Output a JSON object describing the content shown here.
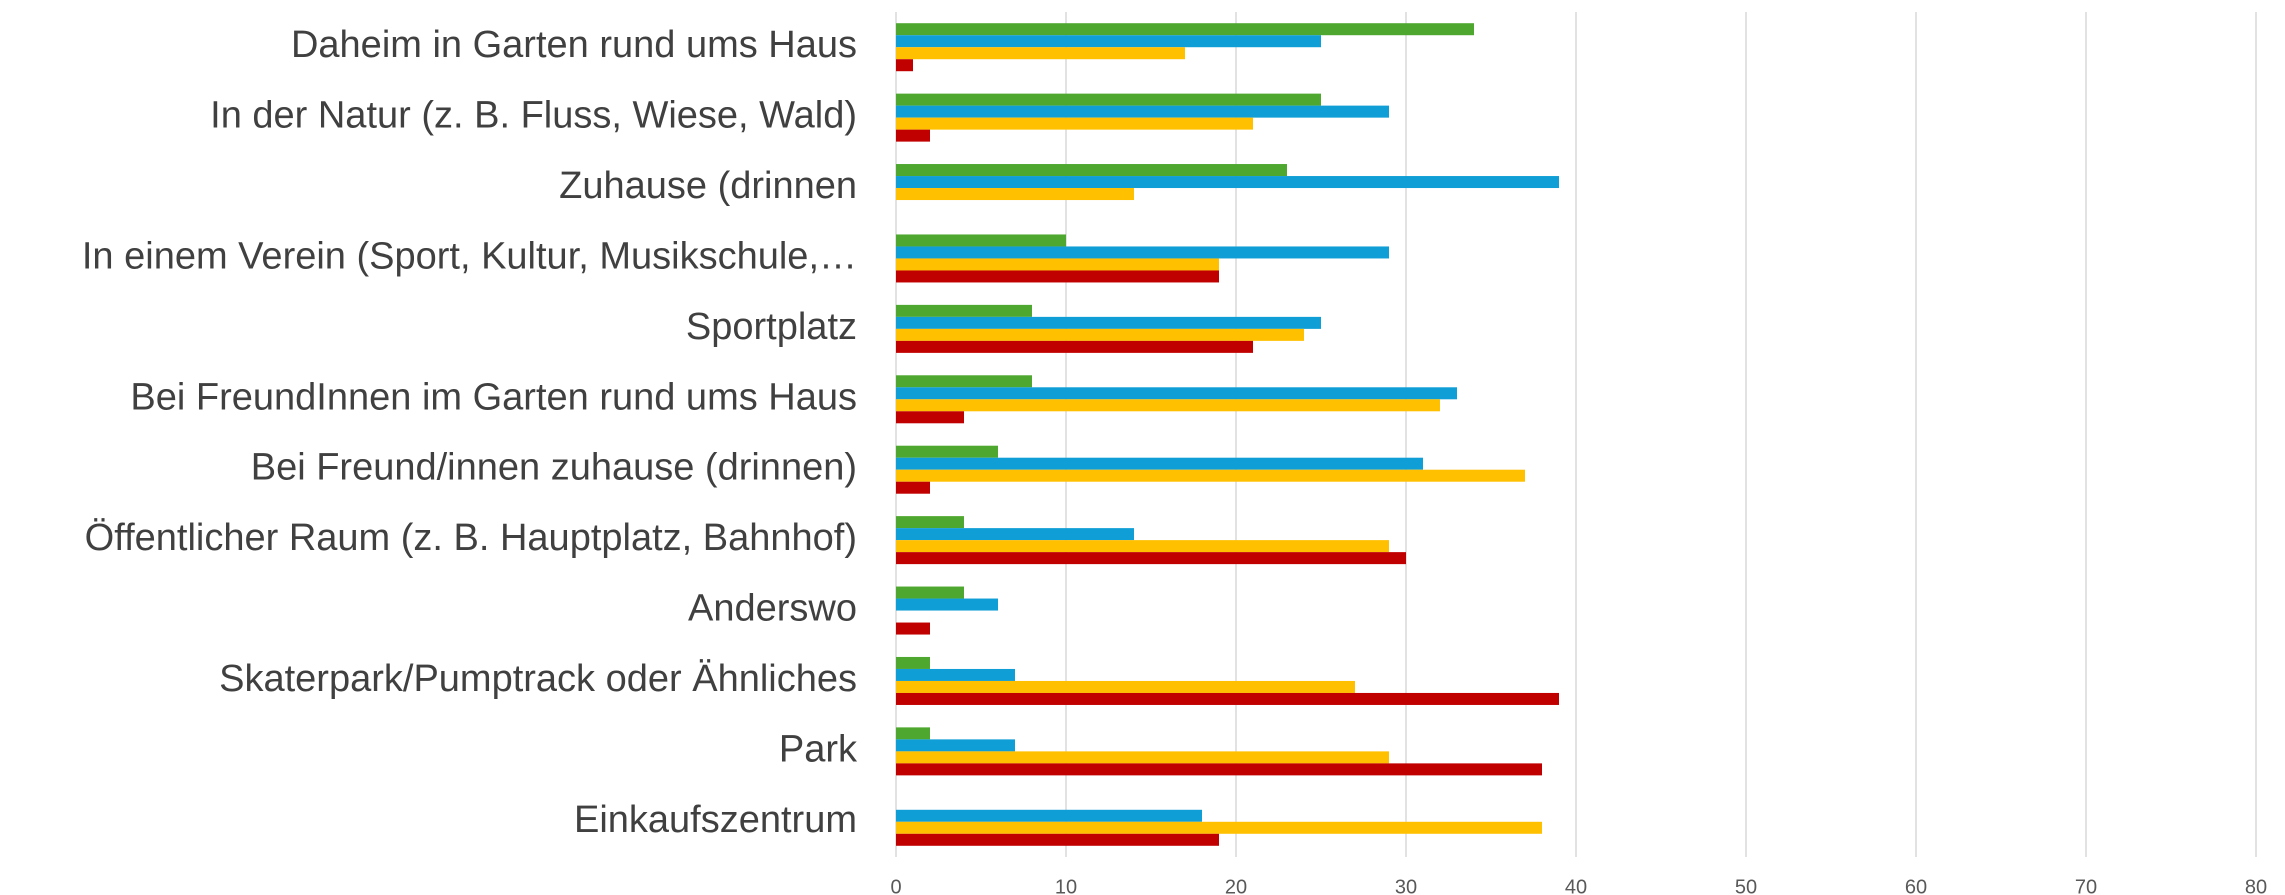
{
  "chart_data": {
    "type": "barh",
    "categories": [
      "Daheim in Garten rund ums Haus",
      "In der Natur (z. B. Fluss, Wiese, Wald)",
      "Zuhause (drinnen",
      "In einem Verein (Sport, Kultur, Musikschule,…",
      "Sportplatz",
      "Bei FreundInnen im Garten rund ums Haus",
      "Bei Freund/innen zuhause (drinnen)",
      "Öffentlicher Raum (z. B. Hauptplatz, Bahnhof)",
      "Anderswo",
      "Skaterpark/Pumptrack oder Ähnliches",
      "Park",
      "Einkaufszentrum"
    ],
    "series": [
      {
        "color": "#4ea72e",
        "values": [
          34,
          25,
          23,
          10,
          8,
          8,
          6,
          4,
          4,
          2,
          2,
          0
        ]
      },
      {
        "color": "#0f9ed5",
        "values": [
          25,
          29,
          39,
          29,
          25,
          33,
          31,
          14,
          6,
          7,
          7,
          18
        ]
      },
      {
        "color": "#ffc000",
        "values": [
          17,
          21,
          14,
          19,
          24,
          32,
          37,
          29,
          0,
          27,
          29,
          38
        ]
      },
      {
        "color": "#c00000",
        "values": [
          1,
          2,
          0,
          19,
          21,
          4,
          2,
          30,
          2,
          39,
          38,
          19
        ]
      }
    ],
    "xlim": [
      0,
      80
    ],
    "xticks": [
      0,
      10,
      20,
      30,
      40,
      50,
      60,
      70,
      80
    ],
    "grid": true
  }
}
